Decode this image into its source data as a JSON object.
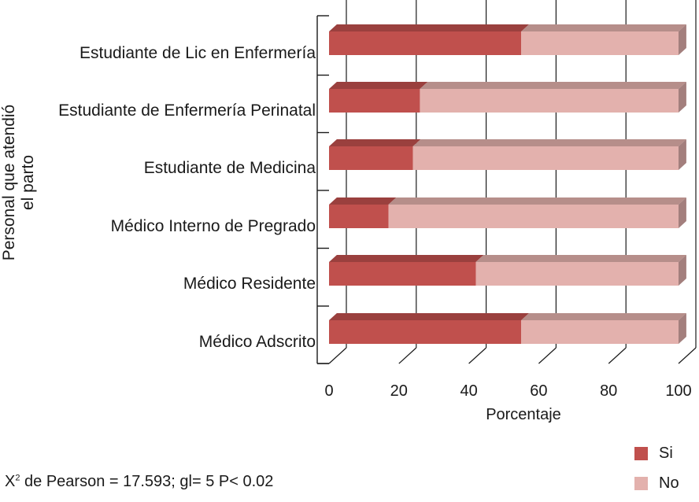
{
  "chart_data": {
    "type": "bar",
    "orientation": "horizontal",
    "stacked": true,
    "ylabel": [
      "Personal que atendió",
      "el parto"
    ],
    "xlabel": "Porcentaje",
    "xlim": [
      0,
      100
    ],
    "x_ticks": [
      "0",
      "20",
      "40",
      "60",
      "80",
      "100"
    ],
    "categories": [
      "Estudiante de Lic en Enfermería",
      "Estudiante de Enfermería Perinatal",
      "Estudiante de Medicina",
      "Médico Interno de Pregrado",
      "Médico Residente",
      "Médico Adscrito"
    ],
    "series": [
      {
        "name": "Si",
        "color": "#c0504d",
        "values": [
          55,
          26,
          24,
          17,
          42,
          55
        ]
      },
      {
        "name": "No",
        "color": "#e3b1ad",
        "values": [
          45,
          74,
          76,
          83,
          58,
          45
        ]
      }
    ],
    "legend_position": "bottom-right"
  },
  "footnote": {
    "prefix": "X",
    "superscript": "2",
    "text": " de Pearson = 17.593; gl= 5 P< 0.02"
  }
}
